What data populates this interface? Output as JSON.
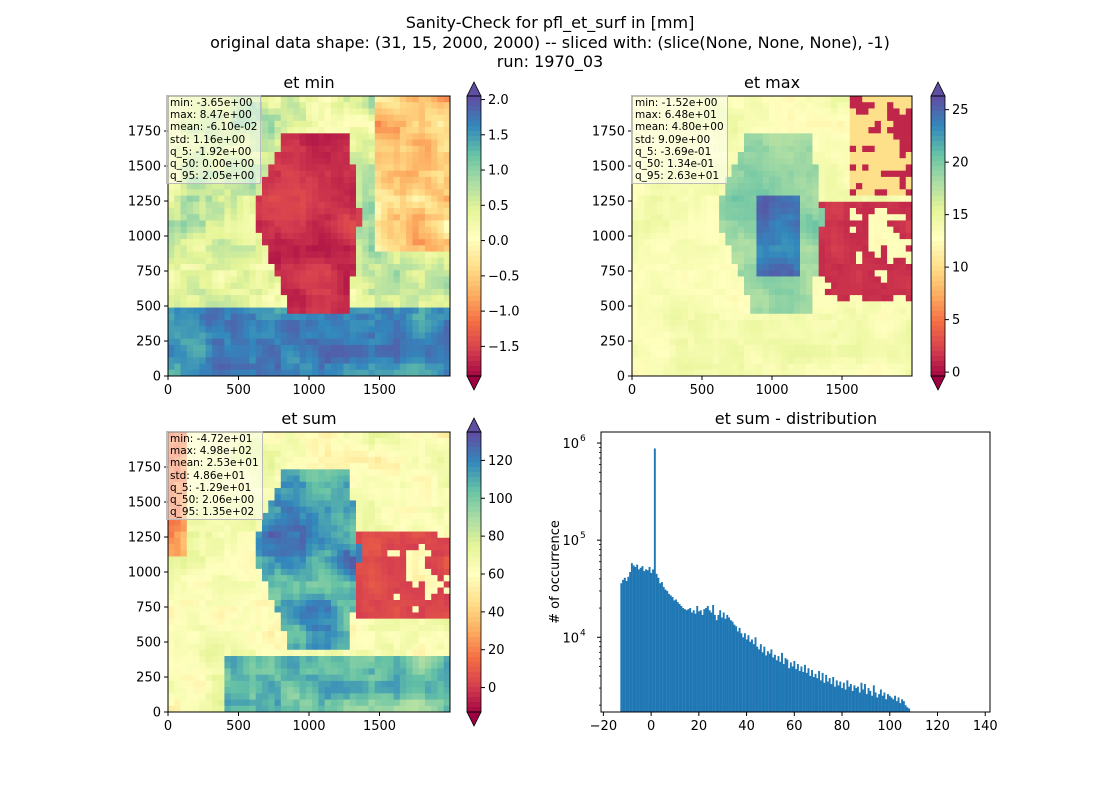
{
  "figure": {
    "title_lines": [
      "Sanity-Check for pfl_et_surf in [mm]",
      "original data shape: (31, 15, 2000, 2000) -- sliced with: (slice(None, None, None), -1)",
      "run: 1970_03"
    ]
  },
  "chart_data": [
    {
      "type": "heatmap",
      "title": "et min",
      "colormap": "Spectral",
      "xlim": [
        0,
        2000
      ],
      "ylim": [
        0,
        2000
      ],
      "xticks": [
        0,
        500,
        1000,
        1500
      ],
      "yticks": [
        0,
        250,
        500,
        750,
        1000,
        1250,
        1500,
        1750
      ],
      "colorbar": {
        "vmin": -1.92,
        "vmax": 2.05,
        "extend": "both",
        "ticks": [
          -1.5,
          -1.0,
          -0.5,
          0.0,
          0.5,
          1.0,
          1.5,
          2.0
        ],
        "tick_labels": [
          "−1.5",
          "−1.0",
          "−0.5",
          "0.0",
          "0.5",
          "1.0",
          "1.5",
          "2.0"
        ]
      },
      "stats": [
        "min: -3.65e+00",
        "max: 8.47e+00",
        "mean: -6.10e-02",
        "std: 1.16e+00",
        "q_5: -1.92e+00",
        "q_50: 0.00e+00",
        "q_95: 2.05e+00"
      ]
    },
    {
      "type": "heatmap",
      "title": "et max",
      "colormap": "Spectral",
      "xlim": [
        0,
        2000
      ],
      "ylim": [
        0,
        2000
      ],
      "xticks": [
        0,
        500,
        1000,
        1500
      ],
      "yticks": [
        0,
        250,
        500,
        750,
        1000,
        1250,
        1500,
        1750
      ],
      "colorbar": {
        "vmin": -0.369,
        "vmax": 26.3,
        "extend": "both",
        "ticks": [
          0,
          5,
          10,
          15,
          20,
          25
        ],
        "tick_labels": [
          "0",
          "5",
          "10",
          "15",
          "20",
          "25"
        ]
      },
      "stats": [
        "min: -1.52e+00",
        "max: 6.48e+01",
        "mean: 4.80e+00",
        "std: 9.09e+00",
        "q_5: -3.69e-01",
        "q_50: 1.34e-01",
        "q_95: 2.63e+01"
      ]
    },
    {
      "type": "heatmap",
      "title": "et sum",
      "colormap": "Spectral",
      "xlim": [
        0,
        2000
      ],
      "ylim": [
        0,
        2000
      ],
      "xticks": [
        0,
        500,
        1000,
        1500
      ],
      "yticks": [
        0,
        250,
        500,
        750,
        1000,
        1250,
        1500,
        1750
      ],
      "colorbar": {
        "vmin": -12.9,
        "vmax": 135,
        "extend": "both",
        "ticks": [
          0,
          20,
          40,
          60,
          80,
          100,
          120
        ],
        "tick_labels": [
          "0",
          "20",
          "40",
          "60",
          "80",
          "100",
          "120"
        ]
      },
      "stats": [
        "min: -4.72e+01",
        "max: 4.98e+02",
        "mean: 2.53e+01",
        "std: 4.86e+01",
        "q_5: -1.29e+01",
        "q_50: 2.06e+00",
        "q_95: 1.35e+02"
      ]
    },
    {
      "type": "bar",
      "title": "et sum - distribution",
      "ylabel": "# of occurrence",
      "yscale": "log",
      "color": "#1f77b4",
      "xlim": [
        -21,
        142
      ],
      "ylim": [
        1700,
        1300000
      ],
      "xticks": [
        -20,
        0,
        20,
        40,
        60,
        80,
        100,
        120,
        140
      ],
      "xtick_labels": [
        "−20",
        "0",
        "20",
        "40",
        "60",
        "80",
        "100",
        "120",
        "140"
      ],
      "yticks": [
        10000,
        100000,
        1000000
      ],
      "ytick_labels": [
        [
          "10",
          "4"
        ],
        [
          "10",
          "5"
        ],
        [
          "10",
          "6"
        ]
      ],
      "bin_start": -12.9,
      "bin_width": 0.74,
      "counts": [
        36000,
        39000,
        41000,
        38000,
        42000,
        47000,
        58000,
        55000,
        53000,
        56000,
        50000,
        52000,
        54000,
        48000,
        50000,
        49000,
        53000,
        46000,
        50000,
        880000,
        45000,
        41000,
        36000,
        37000,
        33000,
        31000,
        30000,
        28000,
        27000,
        26000,
        24000,
        24500,
        23000,
        22000,
        21000,
        20000,
        19500,
        19000,
        19500,
        20000,
        18000,
        19000,
        17500,
        21000,
        18500,
        19000,
        17000,
        19500,
        20000,
        21000,
        19000,
        18000,
        21500,
        17000,
        15000,
        17000,
        19000,
        16000,
        18000,
        15500,
        17000,
        16000,
        15000,
        14500,
        13500,
        13000,
        11500,
        12500,
        11000,
        10000,
        11000,
        9500,
        10500,
        9000,
        9500,
        8500,
        10000,
        8000,
        7500,
        8500,
        7000,
        8000,
        6500,
        7200,
        6800,
        7500,
        6200,
        6600,
        5800,
        6400,
        5600,
        6900,
        5300,
        6100,
        5900,
        4800,
        5500,
        5000,
        5700,
        4700,
        5300,
        4500,
        5000,
        4400,
        5200,
        4300,
        4800,
        4000,
        4600,
        3900,
        4200,
        3800,
        4500,
        3600,
        4300,
        3400,
        4100,
        3500,
        3800,
        3300,
        3900,
        3100,
        3600,
        3200,
        3500,
        3000,
        3400,
        2900,
        3600,
        3100,
        3300,
        2800,
        3200,
        3000,
        3100,
        2700,
        3400,
        2900,
        3300,
        2600,
        3000,
        2800,
        2500,
        3200,
        2700,
        2400,
        2600,
        2900,
        2500,
        2700,
        2300,
        2600,
        2500,
        2400,
        2300,
        2500,
        2200,
        2400,
        2100,
        2300,
        2200,
        2000,
        1900,
        1850
      ]
    }
  ]
}
